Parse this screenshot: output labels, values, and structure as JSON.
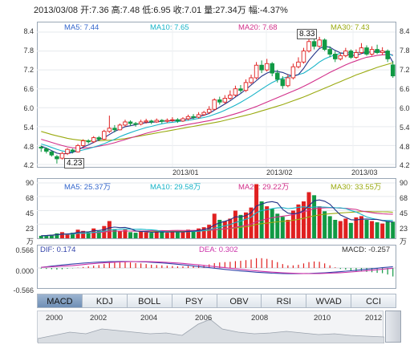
{
  "info_bar": "2013/03/08 开:7.36 高:7.48 低:6.95 收:7.01 量:27.34万 幅:-4.37%",
  "price": {
    "ma_legend": [
      {
        "text": "MA5: 7.44",
        "color": "#3366cc"
      },
      {
        "text": "MA10: 7.65",
        "color": "#18b4c8"
      },
      {
        "text": "MA20: 7.68",
        "color": "#d2308a"
      },
      {
        "text": "MA30: 7.43",
        "color": "#9aaa10"
      }
    ],
    "y_ticks": [
      "8.4",
      "7.8",
      "7.2",
      "6.6",
      "6.0",
      "5.4",
      "4.8",
      "4.2"
    ],
    "max_callout": "8.33",
    "min_callout": "4.23",
    "time_labels": [
      "2013/01",
      "2013/02",
      "2013/03"
    ]
  },
  "volume": {
    "ma_legend": [
      {
        "text": "MA5: 25.37万",
        "color": "#3366cc"
      },
      {
        "text": "MA10: 29.58万",
        "color": "#18b4c8"
      },
      {
        "text": "MA20: 29.22万",
        "color": "#d2308a"
      },
      {
        "text": "MA30: 33.55万",
        "color": "#9aaa10"
      }
    ],
    "y_ticks": [
      "90",
      "68",
      "45",
      "23",
      "万"
    ]
  },
  "macd": {
    "dif": "DIF: 0.174",
    "dea": "DEA: 0.302",
    "macd": "MACD: -0.257",
    "y_ticks": [
      "0.566",
      "0.000",
      "-0.566"
    ]
  },
  "tabs": [
    {
      "label": "MACD",
      "active": true
    },
    {
      "label": "KDJ",
      "active": false
    },
    {
      "label": "BOLL",
      "active": false
    },
    {
      "label": "PSY",
      "active": false
    },
    {
      "label": "OBV",
      "active": false
    },
    {
      "label": "RSI",
      "active": false
    },
    {
      "label": "WVAD",
      "active": false
    },
    {
      "label": "CCI",
      "active": false
    }
  ],
  "navigator_years": [
    "2000",
    "2002",
    "2004",
    "2006",
    "2008",
    "2010",
    "2012"
  ],
  "chart_data": {
    "type": "candlestick",
    "ylim": [
      4.2,
      8.4
    ],
    "candles": [
      [
        4.75,
        4.72,
        4.8,
        4.6
      ],
      [
        4.7,
        4.62,
        4.74,
        4.55
      ],
      [
        4.6,
        4.5,
        4.64,
        4.45
      ],
      [
        4.45,
        4.38,
        4.5,
        4.23
      ],
      [
        4.4,
        4.55,
        4.6,
        4.36
      ],
      [
        4.55,
        4.68,
        4.72,
        4.5
      ],
      [
        4.66,
        4.62,
        4.7,
        4.55
      ],
      [
        4.6,
        4.8,
        4.85,
        4.58
      ],
      [
        4.8,
        4.95,
        5.0,
        4.76
      ],
      [
        4.95,
        4.92,
        5.0,
        4.86
      ],
      [
        4.92,
        5.05,
        5.1,
        4.88
      ],
      [
        5.05,
        5.0,
        5.1,
        4.95
      ],
      [
        5.0,
        5.25,
        5.3,
        4.98
      ],
      [
        5.25,
        5.35,
        5.75,
        5.2
      ],
      [
        5.35,
        5.3,
        5.45,
        5.22
      ],
      [
        5.3,
        5.45,
        5.5,
        5.28
      ],
      [
        5.45,
        5.55,
        5.62,
        5.4
      ],
      [
        5.55,
        5.5,
        5.6,
        5.42
      ],
      [
        5.5,
        5.48,
        5.55,
        5.4
      ],
      [
        5.48,
        5.55,
        5.62,
        5.44
      ],
      [
        5.55,
        5.58,
        5.65,
        5.5
      ],
      [
        5.58,
        5.55,
        5.62,
        5.48
      ],
      [
        5.55,
        5.6,
        5.66,
        5.52
      ],
      [
        5.6,
        5.57,
        5.64,
        5.5
      ],
      [
        5.57,
        5.6,
        5.66,
        5.52
      ],
      [
        5.6,
        5.62,
        5.7,
        5.55
      ],
      [
        5.62,
        5.58,
        5.67,
        5.52
      ],
      [
        5.58,
        5.65,
        5.7,
        5.55
      ],
      [
        5.65,
        5.72,
        5.78,
        5.6
      ],
      [
        5.72,
        5.7,
        5.8,
        5.64
      ],
      [
        5.7,
        5.78,
        5.86,
        5.66
      ],
      [
        5.78,
        5.85,
        5.9,
        5.74
      ],
      [
        5.85,
        5.95,
        6.05,
        5.8
      ],
      [
        5.95,
        6.25,
        6.3,
        5.92
      ],
      [
        6.25,
        6.18,
        6.35,
        6.1
      ],
      [
        6.18,
        6.3,
        6.4,
        6.12
      ],
      [
        6.3,
        6.4,
        6.55,
        6.25
      ],
      [
        6.4,
        6.6,
        6.7,
        6.35
      ],
      [
        6.6,
        6.55,
        6.72,
        6.48
      ],
      [
        6.55,
        6.8,
        6.9,
        6.5
      ],
      [
        6.8,
        6.95,
        7.05,
        6.75
      ],
      [
        6.95,
        7.35,
        7.45,
        6.9
      ],
      [
        7.35,
        7.2,
        7.5,
        7.1
      ],
      [
        7.2,
        7.4,
        7.55,
        7.15
      ],
      [
        7.4,
        7.1,
        7.45,
        7.0
      ],
      [
        7.1,
        6.9,
        7.2,
        6.8
      ],
      [
        6.9,
        6.7,
        7.0,
        6.6
      ],
      [
        6.7,
        6.95,
        7.05,
        6.65
      ],
      [
        6.95,
        7.3,
        7.4,
        6.9
      ],
      [
        7.3,
        7.45,
        7.6,
        7.25
      ],
      [
        7.45,
        7.8,
        7.9,
        7.4
      ],
      [
        7.8,
        8.1,
        8.2,
        7.75
      ],
      [
        8.1,
        7.95,
        8.33,
        7.85
      ],
      [
        7.95,
        8.15,
        8.25,
        7.9
      ],
      [
        8.15,
        7.85,
        8.2,
        7.8
      ],
      [
        7.85,
        7.7,
        7.95,
        7.6
      ],
      [
        7.7,
        7.55,
        7.8,
        7.45
      ],
      [
        7.55,
        7.65,
        7.75,
        7.5
      ],
      [
        7.65,
        7.8,
        7.9,
        7.6
      ],
      [
        7.8,
        7.6,
        7.85,
        7.55
      ],
      [
        7.6,
        7.75,
        7.85,
        7.55
      ],
      [
        7.75,
        7.9,
        8.05,
        7.7
      ],
      [
        7.9,
        7.7,
        7.98,
        7.65
      ],
      [
        7.7,
        7.85,
        7.95,
        7.65
      ],
      [
        7.85,
        7.75,
        8.0,
        7.7
      ],
      [
        7.75,
        7.8,
        7.92,
        7.68
      ],
      [
        7.8,
        7.55,
        7.85,
        7.45
      ],
      [
        7.36,
        7.01,
        7.48,
        6.95
      ]
    ],
    "ma5": [
      4.78,
      4.72,
      4.64,
      4.56,
      4.53,
      4.55,
      4.58,
      4.66,
      4.75,
      4.82,
      4.9,
      4.98,
      5.05,
      5.15,
      5.25,
      5.32,
      5.4,
      5.43,
      5.46,
      5.5,
      5.53,
      5.54,
      5.55,
      5.57,
      5.58,
      5.59,
      5.6,
      5.61,
      5.65,
      5.68,
      5.72,
      5.76,
      5.82,
      5.92,
      6.02,
      6.12,
      6.22,
      6.34,
      6.45,
      6.58,
      6.72,
      6.86,
      7.0,
      7.1,
      7.16,
      7.15,
      7.12,
      7.05,
      7.0,
      7.05,
      7.25,
      7.5,
      7.7,
      7.88,
      7.95,
      7.92,
      7.82,
      7.74,
      7.72,
      7.66,
      7.66,
      7.72,
      7.75,
      7.78,
      7.8,
      7.8,
      7.74,
      7.44
    ],
    "ma10": [
      4.85,
      4.8,
      4.74,
      4.68,
      4.63,
      4.6,
      4.6,
      4.62,
      4.66,
      4.7,
      4.75,
      4.8,
      4.86,
      4.93,
      5.0,
      5.08,
      5.15,
      5.21,
      5.27,
      5.32,
      5.37,
      5.41,
      5.45,
      5.49,
      5.52,
      5.54,
      5.56,
      5.58,
      5.6,
      5.63,
      5.66,
      5.69,
      5.73,
      5.79,
      5.85,
      5.92,
      6.0,
      6.08,
      6.17,
      6.27,
      6.37,
      6.48,
      6.59,
      6.7,
      6.8,
      6.88,
      6.94,
      6.98,
      7.02,
      7.05,
      7.1,
      7.2,
      7.32,
      7.45,
      7.55,
      7.62,
      7.68,
      7.72,
      7.74,
      7.75,
      7.75,
      7.76,
      7.77,
      7.76,
      7.76,
      7.76,
      7.74,
      7.65
    ],
    "ma20": [
      5.0,
      4.95,
      4.9,
      4.85,
      4.8,
      4.76,
      4.73,
      4.72,
      4.72,
      4.73,
      4.75,
      4.78,
      4.81,
      4.85,
      4.89,
      4.94,
      4.99,
      5.04,
      5.09,
      5.14,
      5.19,
      5.23,
      5.27,
      5.31,
      5.35,
      5.38,
      5.41,
      5.44,
      5.47,
      5.5,
      5.53,
      5.56,
      5.59,
      5.63,
      5.67,
      5.71,
      5.76,
      5.81,
      5.86,
      5.92,
      5.98,
      6.04,
      6.11,
      6.18,
      6.25,
      6.32,
      6.39,
      6.46,
      6.53,
      6.6,
      6.68,
      6.76,
      6.85,
      6.94,
      7.03,
      7.12,
      7.2,
      7.28,
      7.36,
      7.43,
      7.49,
      7.55,
      7.6,
      7.63,
      7.66,
      7.68,
      7.69,
      7.68
    ],
    "ma30": [
      5.25,
      5.2,
      5.15,
      5.11,
      5.07,
      5.03,
      5.0,
      4.98,
      4.96,
      4.95,
      4.95,
      4.95,
      4.96,
      4.97,
      4.98,
      5.0,
      5.02,
      5.05,
      5.08,
      5.11,
      5.14,
      5.17,
      5.2,
      5.23,
      5.26,
      5.29,
      5.32,
      5.35,
      5.38,
      5.41,
      5.44,
      5.47,
      5.5,
      5.53,
      5.56,
      5.6,
      5.64,
      5.68,
      5.72,
      5.76,
      5.8,
      5.85,
      5.9,
      5.95,
      6.0,
      6.05,
      6.1,
      6.16,
      6.22,
      6.28,
      6.34,
      6.41,
      6.48,
      6.55,
      6.62,
      6.69,
      6.76,
      6.83,
      6.9,
      6.97,
      7.04,
      7.1,
      7.16,
      7.22,
      7.28,
      7.33,
      7.38,
      7.43
    ],
    "volume": [
      4,
      5,
      6,
      8,
      10,
      7,
      9,
      14,
      12,
      10,
      16,
      12,
      20,
      28,
      15,
      12,
      14,
      10,
      9,
      11,
      10,
      9,
      12,
      10,
      9,
      12,
      10,
      11,
      14,
      12,
      16,
      18,
      22,
      40,
      30,
      28,
      32,
      45,
      38,
      42,
      50,
      88,
      60,
      52,
      48,
      40,
      35,
      30,
      45,
      55,
      60,
      75,
      70,
      52,
      44,
      36,
      30,
      28,
      32,
      25,
      34,
      36,
      30,
      28,
      26,
      24,
      28,
      27
    ],
    "vol_ylim": [
      0,
      90
    ],
    "macd_hist": [
      -0.02,
      -0.03,
      -0.04,
      -0.05,
      -0.04,
      -0.02,
      -0.01,
      0.01,
      0.03,
      0.05,
      0.07,
      0.09,
      0.12,
      0.16,
      0.16,
      0.17,
      0.18,
      0.17,
      0.15,
      0.14,
      0.12,
      0.1,
      0.09,
      0.08,
      0.07,
      0.06,
      0.05,
      0.05,
      0.06,
      0.07,
      0.08,
      0.09,
      0.11,
      0.15,
      0.17,
      0.18,
      0.19,
      0.21,
      0.22,
      0.24,
      0.26,
      0.3,
      0.3,
      0.28,
      0.24,
      0.18,
      0.12,
      0.08,
      0.08,
      0.1,
      0.14,
      0.18,
      0.2,
      0.19,
      0.14,
      0.08,
      0.02,
      -0.03,
      -0.05,
      -0.09,
      -0.1,
      -0.1,
      -0.12,
      -0.13,
      -0.15,
      -0.16,
      -0.2,
      -0.26
    ],
    "macd_ylim": [
      -0.566,
      0.566
    ]
  }
}
